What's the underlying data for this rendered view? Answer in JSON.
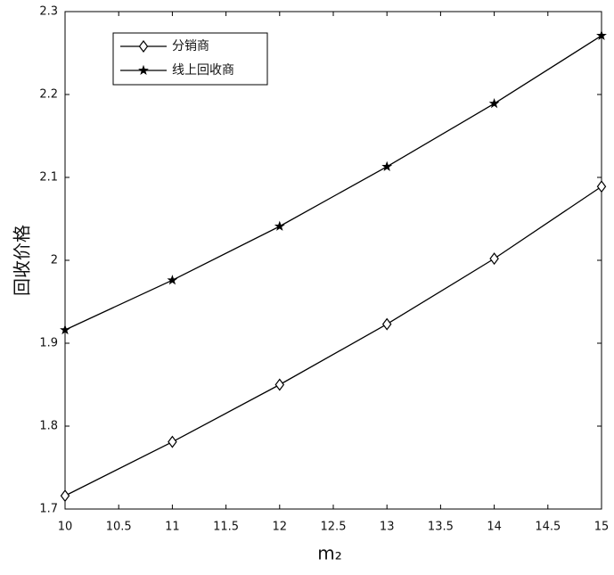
{
  "chart_data": {
    "type": "line",
    "xlabel": "m₂",
    "ylabel": "回收价格",
    "x": [
      10,
      11,
      12,
      13,
      14,
      15
    ],
    "series": [
      {
        "name": "分销商",
        "color": "#000000",
        "marker": "diamond",
        "values": [
          1.716,
          1.781,
          1.85,
          1.923,
          2.002,
          2.089
        ]
      },
      {
        "name": "线上回收商",
        "color": "#000000",
        "marker": "star",
        "values": [
          1.916,
          1.976,
          2.041,
          2.113,
          2.189,
          2.271
        ]
      }
    ],
    "xlim": [
      10,
      15
    ],
    "xticks": [
      10,
      10.5,
      11,
      11.5,
      12,
      12.5,
      13,
      13.5,
      14,
      14.5,
      15
    ],
    "ylim": [
      1.7,
      2.3
    ],
    "yticks": [
      1.7,
      1.8,
      1.9,
      2,
      2.1,
      2.2,
      2.3
    ],
    "grid": false,
    "legend": "upper left"
  }
}
